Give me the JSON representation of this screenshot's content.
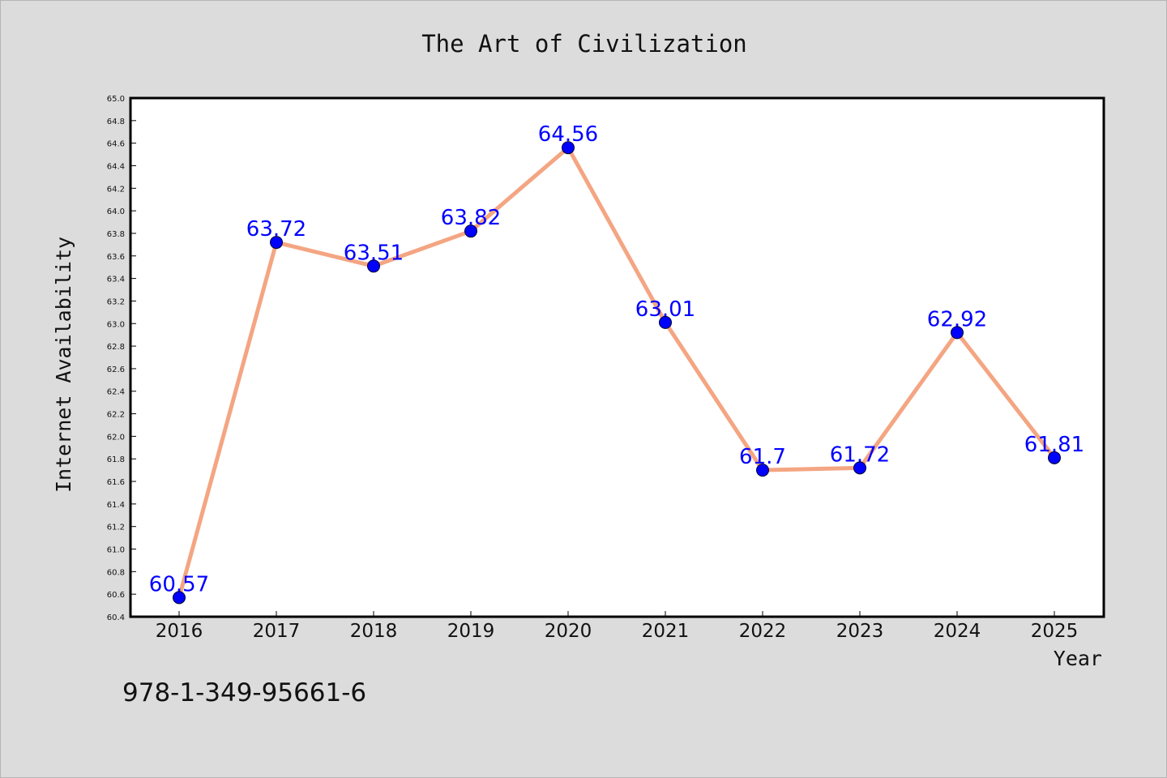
{
  "chart_data": {
    "type": "line",
    "title": "The Art of Civilization",
    "xlabel": "Year",
    "ylabel": "Internet Availability",
    "categories": [
      "2016",
      "2017",
      "2018",
      "2019",
      "2020",
      "2021",
      "2022",
      "2023",
      "2024",
      "2025"
    ],
    "series": [
      {
        "values": [
          60.57,
          63.72,
          63.51,
          63.82,
          64.56,
          63.01,
          61.7,
          61.72,
          62.92,
          61.81
        ],
        "data_labels": [
          "60.57",
          "63.72",
          "63.51",
          "63.82",
          "64.56",
          "63.01",
          "61.7",
          "61.72",
          "62.92",
          "61.81"
        ]
      }
    ],
    "ylim": [
      60.4,
      65.0
    ],
    "y_ticks": [
      "60.4",
      "60.6",
      "60.8",
      "61.0",
      "61.2",
      "61.4",
      "61.6",
      "61.8",
      "62.0",
      "62.2",
      "62.4",
      "62.6",
      "62.8",
      "63.0",
      "63.2",
      "63.4",
      "63.6",
      "63.8",
      "64.0",
      "64.2",
      "64.4",
      "64.6",
      "64.8",
      "65.0"
    ],
    "grid": false,
    "legend": "none",
    "colors": {
      "line": "#f4a582",
      "marker": "#0000ff",
      "label": "#0000ff",
      "plot_bg": "#ffffff",
      "page_bg": "#dcdcdc"
    }
  },
  "annotation": "978-1-349-95661-6"
}
